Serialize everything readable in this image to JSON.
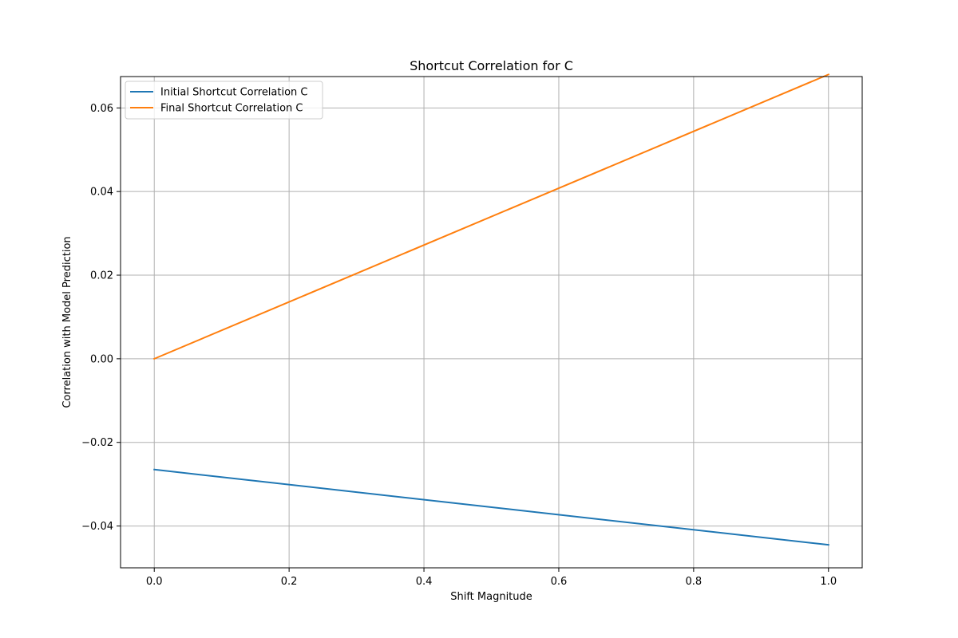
{
  "chart_data": {
    "type": "line",
    "title": "Shortcut Correlation for C",
    "xlabel": "Shift Magnitude",
    "ylabel": "Correlation with Model Prediction",
    "xlim": [
      -0.05,
      1.05
    ],
    "ylim": [
      -0.05,
      0.0675
    ],
    "xticks": [
      0.0,
      0.2,
      0.4,
      0.6,
      0.8,
      1.0
    ],
    "xtick_labels": [
      "0.0",
      "0.2",
      "0.4",
      "0.6",
      "0.8",
      "1.0"
    ],
    "yticks": [
      -0.04,
      -0.02,
      0.0,
      0.02,
      0.04,
      0.06
    ],
    "ytick_labels": [
      "−0.04",
      "−0.02",
      "0.00",
      "0.02",
      "0.04",
      "0.06"
    ],
    "grid": true,
    "legend_position": "top-left",
    "series": [
      {
        "name": "Initial Shortcut Correlation C",
        "color": "#1f77b4",
        "x": [
          0.0,
          1.0
        ],
        "y": [
          -0.0265,
          -0.0445
        ]
      },
      {
        "name": "Final Shortcut Correlation C",
        "color": "#ff7f0e",
        "x": [
          0.0,
          1.0
        ],
        "y": [
          0.0,
          0.068
        ]
      }
    ]
  }
}
